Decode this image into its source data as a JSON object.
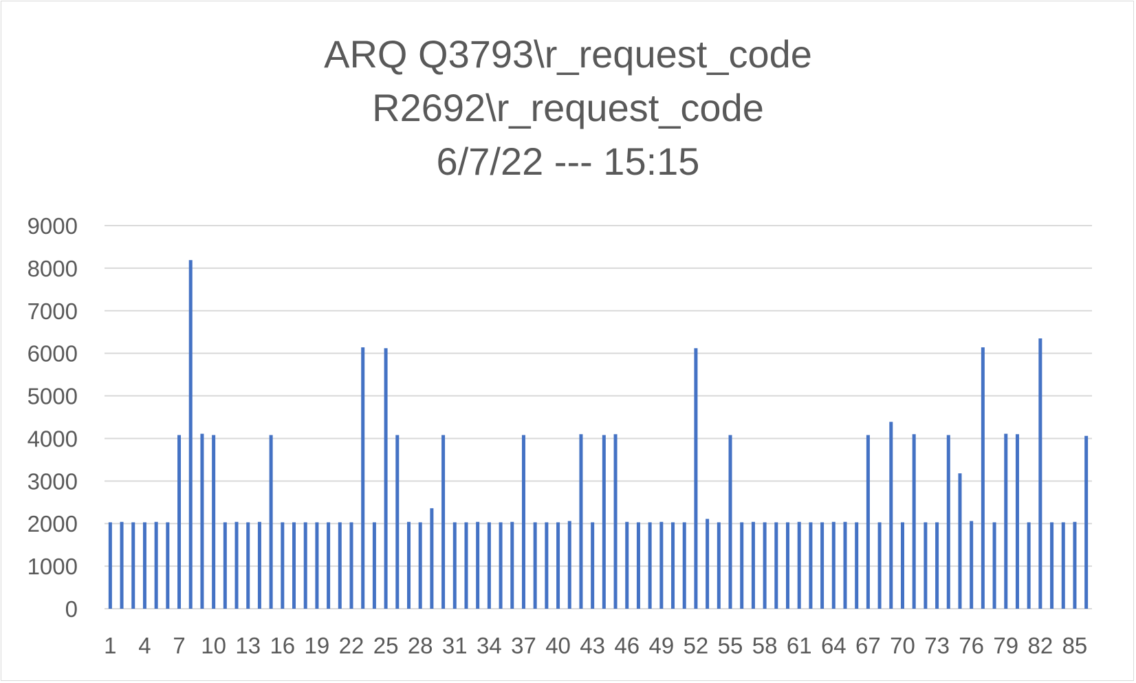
{
  "chart_data": {
    "type": "bar",
    "title_lines": [
      "ARQ Q3793\\r_request_code",
      "R2692\\r_request_code",
      "6/7/22 --- 15:15"
    ],
    "xlabel": "",
    "ylabel": "",
    "ylim": [
      0,
      9000
    ],
    "yticks": [
      0,
      1000,
      2000,
      3000,
      4000,
      5000,
      6000,
      7000,
      8000,
      9000
    ],
    "grid": true,
    "legend": "none",
    "bar_color": "#4472c4",
    "grid_color": "#d9d9d9",
    "categories": [
      1,
      2,
      3,
      4,
      5,
      6,
      7,
      8,
      9,
      10,
      11,
      12,
      13,
      14,
      15,
      16,
      17,
      18,
      19,
      20,
      21,
      22,
      23,
      24,
      25,
      26,
      27,
      28,
      29,
      30,
      31,
      32,
      33,
      34,
      35,
      36,
      37,
      38,
      39,
      40,
      41,
      42,
      43,
      44,
      45,
      46,
      47,
      48,
      49,
      50,
      51,
      52,
      53,
      54,
      55,
      56,
      57,
      58,
      59,
      60,
      61,
      62,
      63,
      64,
      65,
      66,
      67,
      68,
      69,
      70,
      71,
      72,
      73,
      74,
      75,
      76,
      77,
      78,
      79,
      80,
      81,
      82,
      83,
      84,
      85,
      86
    ],
    "x_tick_labels": [
      "1",
      "4",
      "7",
      "10",
      "13",
      "16",
      "19",
      "22",
      "25",
      "28",
      "31",
      "34",
      "37",
      "40",
      "43",
      "46",
      "49",
      "52",
      "55",
      "58",
      "61",
      "64",
      "67",
      "70",
      "73",
      "76",
      "79",
      "82",
      "85"
    ],
    "values": [
      2030,
      2040,
      2030,
      2030,
      2040,
      2030,
      4080,
      8190,
      4110,
      4080,
      2030,
      2040,
      2030,
      2040,
      4080,
      2030,
      2030,
      2030,
      2030,
      2030,
      2030,
      2030,
      6140,
      2030,
      6120,
      4080,
      2040,
      2030,
      2360,
      4080,
      2030,
      2030,
      2040,
      2030,
      2030,
      2040,
      4080,
      2030,
      2030,
      2030,
      2060,
      4100,
      2030,
      4080,
      4100,
      2040,
      2030,
      2030,
      2040,
      2030,
      2030,
      6120,
      2110,
      2030,
      4080,
      2030,
      2040,
      2030,
      2030,
      2030,
      2040,
      2030,
      2030,
      2040,
      2040,
      2030,
      4080,
      2030,
      4390,
      2030,
      4100,
      2030,
      2030,
      4080,
      3180,
      2060,
      6140,
      2030,
      4110,
      4100,
      2030,
      6350,
      2030,
      2030,
      2040,
      4060
    ]
  }
}
